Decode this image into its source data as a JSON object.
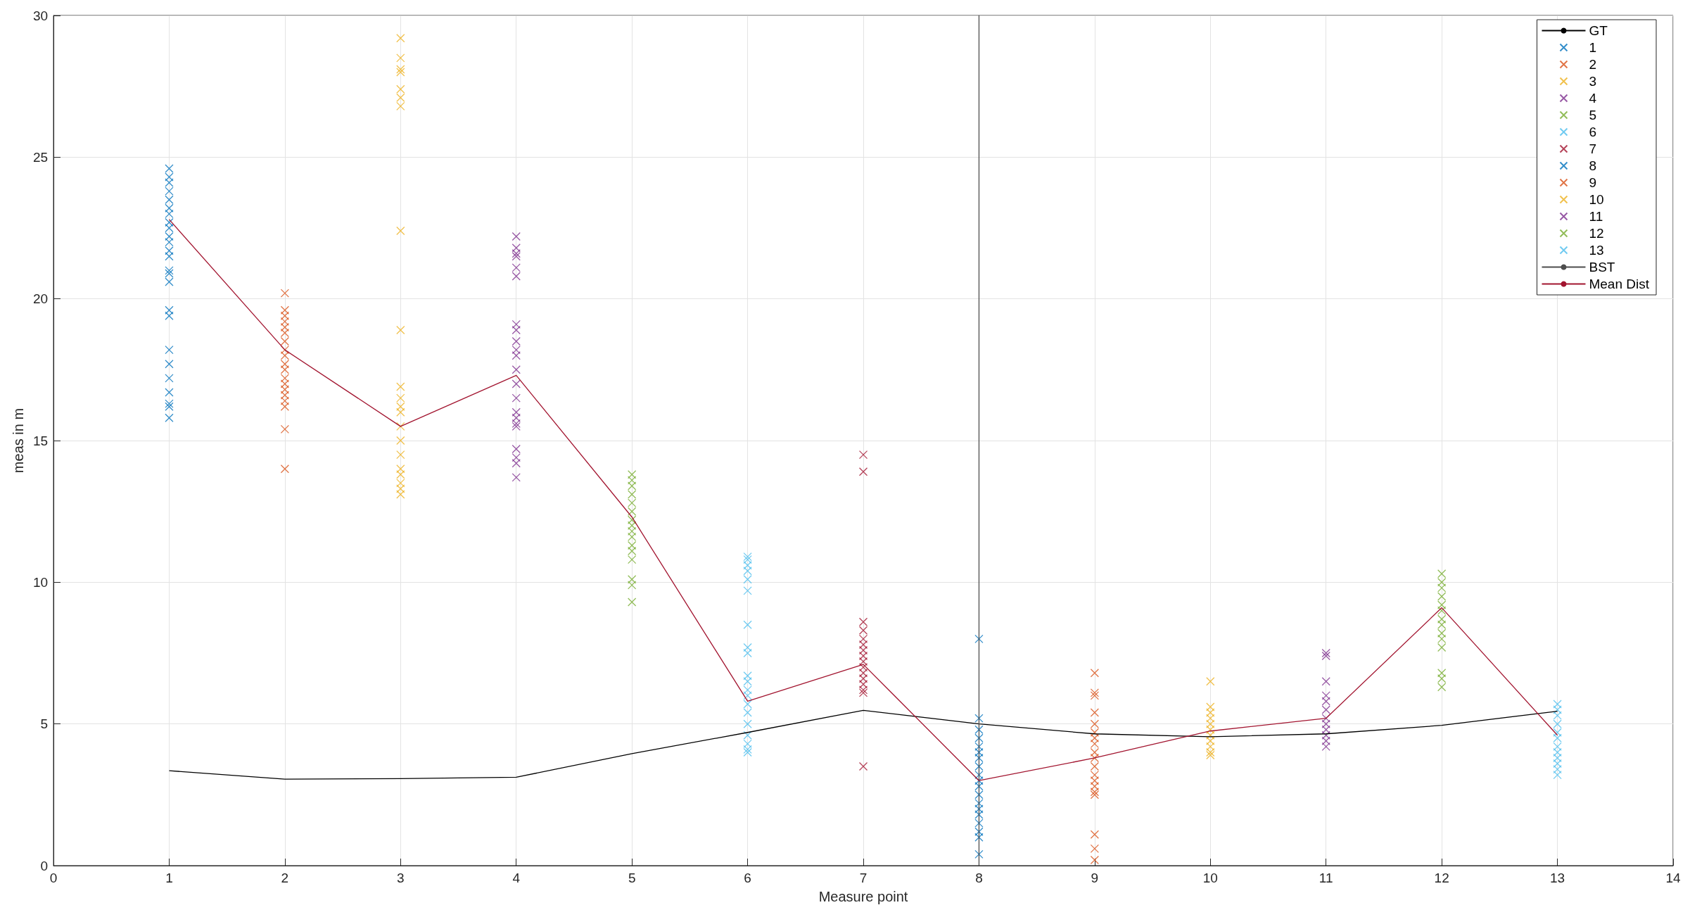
{
  "chart_data": {
    "type": "scatter",
    "xlabel": "Measure point",
    "ylabel": "meas in m",
    "xlim": [
      0,
      14
    ],
    "xticks": [
      0,
      1,
      2,
      3,
      4,
      5,
      6,
      7,
      8,
      9,
      10,
      11,
      12,
      13,
      14
    ],
    "ylim": [
      0,
      30
    ],
    "yticks": [
      0,
      5,
      10,
      15,
      20,
      25,
      30
    ],
    "grid": true,
    "legend": "top right",
    "marker": "cross",
    "series": [
      {
        "name": "GT",
        "type": "line",
        "marker": "none",
        "color": "#000000",
        "x": [
          1,
          2,
          3,
          4,
          5,
          6,
          7,
          8,
          9,
          10,
          11,
          12,
          13
        ],
        "values": [
          3.35,
          3.05,
          3.07,
          3.12,
          3.95,
          4.7,
          5.48,
          5.0,
          4.65,
          4.55,
          4.65,
          4.95,
          5.45
        ]
      },
      {
        "name": "1",
        "color": "#0072bd",
        "x": [
          1,
          1,
          1,
          1,
          1,
          1,
          1,
          1,
          1,
          1,
          1,
          1,
          1,
          1,
          1,
          1,
          1,
          1,
          1,
          1,
          1,
          1,
          1,
          1,
          1
        ],
        "values": [
          24.6,
          24.3,
          24.1,
          23.8,
          23.5,
          23.2,
          23,
          22.7,
          22.5,
          22.2,
          22,
          21.7,
          21.5,
          21,
          20.9,
          20.6,
          19.6,
          19.4,
          18.2,
          17.7,
          17.2,
          16.7,
          16.3,
          16.2,
          15.8
        ]
      },
      {
        "name": "2",
        "color": "#d95319",
        "x": [
          2,
          2,
          2,
          2,
          2,
          2,
          2,
          2,
          2,
          2,
          2,
          2,
          2,
          2,
          2,
          2,
          2,
          2,
          2
        ],
        "values": [
          20.2,
          19.6,
          19.4,
          19.2,
          19,
          18.8,
          18.5,
          18.2,
          18,
          17.7,
          17.5,
          17.2,
          17,
          16.8,
          16.6,
          16.4,
          16.2,
          14.0,
          15.4
        ]
      },
      {
        "name": "3",
        "color": "#edb120",
        "x": [
          3,
          3,
          3,
          3,
          3,
          3,
          3,
          3,
          3,
          3,
          3,
          3,
          3,
          3,
          3,
          3,
          3,
          3,
          3,
          3,
          3
        ],
        "values": [
          29.2,
          28.5,
          28.1,
          28.0,
          27.4,
          27.1,
          26.8,
          22.4,
          18.9,
          16.9,
          16.5,
          16.2,
          16,
          15.5,
          15,
          14.5,
          14,
          13.8,
          13.5,
          13.3,
          13.1
        ]
      },
      {
        "name": "4",
        "color": "#7e2f8e",
        "x": [
          4,
          4,
          4,
          4,
          4,
          4,
          4,
          4,
          4,
          4,
          4,
          4,
          4,
          4,
          4,
          4,
          4,
          4,
          4,
          4,
          4,
          4
        ],
        "values": [
          22.2,
          21.8,
          21.6,
          21.5,
          21.1,
          20.8,
          19.1,
          18.9,
          18.5,
          18.2,
          18,
          17.5,
          17,
          16.5,
          16,
          15.8,
          15.6,
          15.5,
          14.7,
          14.4,
          14.2,
          13.7
        ]
      },
      {
        "name": "5",
        "color": "#77ac30",
        "x": [
          5,
          5,
          5,
          5,
          5,
          5,
          5,
          5,
          5,
          5,
          5,
          5,
          5,
          5,
          5,
          5
        ],
        "values": [
          13.8,
          13.6,
          13.4,
          13.1,
          12.8,
          12.5,
          12.2,
          12,
          11.8,
          11.6,
          11.3,
          11.1,
          10.8,
          10.1,
          9.9,
          9.3
        ]
      },
      {
        "name": "6",
        "color": "#4dbeee",
        "x": [
          6,
          6,
          6,
          6,
          6,
          6,
          6,
          6,
          6,
          6,
          6,
          6,
          6,
          6,
          6,
          6,
          6,
          6,
          6,
          6
        ],
        "values": [
          10.9,
          10.8,
          10.6,
          10.4,
          10.1,
          9.7,
          8.5,
          7.7,
          7.5,
          6.7,
          6.5,
          6.2,
          6,
          5.7,
          5.4,
          5,
          4.6,
          4.3,
          4.1,
          4.0
        ]
      },
      {
        "name": "7",
        "color": "#a2142f",
        "x": [
          7,
          7,
          7,
          7,
          7,
          7,
          7,
          7,
          7,
          7,
          7,
          7,
          7,
          7,
          7,
          7
        ],
        "values": [
          14.5,
          13.9,
          8.6,
          8.3,
          8.0,
          7.8,
          7.6,
          7.4,
          7.2,
          7.0,
          6.8,
          6.6,
          6.4,
          6.2,
          6.1,
          3.5
        ]
      },
      {
        "name": "8",
        "color": "#0072bd",
        "x": [
          8,
          8,
          8,
          8,
          8,
          8,
          8,
          8,
          8,
          8,
          8,
          8,
          8,
          8,
          8,
          8,
          8,
          8,
          8
        ],
        "values": [
          8.0,
          5.2,
          4.8,
          4.5,
          4.2,
          4.0,
          3.8,
          3.5,
          3.2,
          3.0,
          2.8,
          2.5,
          2.2,
          2.0,
          1.8,
          1.5,
          1.2,
          1.0,
          0.4
        ]
      },
      {
        "name": "9",
        "color": "#d95319",
        "x": [
          9,
          9,
          9,
          9,
          9,
          9,
          9,
          9,
          9,
          9,
          9,
          9,
          9,
          9,
          9,
          9,
          9,
          9,
          9
        ],
        "values": [
          6.8,
          6.1,
          6.0,
          5.4,
          5.0,
          4.7,
          4.5,
          4.3,
          4.0,
          3.8,
          3.5,
          3.2,
          3.0,
          2.8,
          2.6,
          2.5,
          1.1,
          0.6,
          0.2
        ]
      },
      {
        "name": "10",
        "color": "#edb120",
        "x": [
          10,
          10,
          10,
          10,
          10,
          10,
          10,
          10,
          10,
          10,
          10
        ],
        "values": [
          6.5,
          5.6,
          5.4,
          5.2,
          5.0,
          4.8,
          4.6,
          4.4,
          4.2,
          4.0,
          3.9
        ]
      },
      {
        "name": "11",
        "color": "#7e2f8e",
        "x": [
          11,
          11,
          11,
          11,
          11,
          11,
          11,
          11,
          11,
          11,
          11,
          11
        ],
        "values": [
          7.5,
          7.4,
          6.5,
          6.0,
          5.8,
          5.5,
          5.2,
          5.0,
          4.8,
          4.6,
          4.4,
          4.2
        ]
      },
      {
        "name": "12",
        "color": "#77ac30",
        "x": [
          12,
          12,
          12,
          12,
          12,
          12,
          12,
          12,
          12,
          12,
          12,
          12,
          12,
          12
        ],
        "values": [
          10.3,
          10.0,
          9.8,
          9.5,
          9.2,
          9.0,
          8.7,
          8.5,
          8.2,
          8.0,
          7.7,
          6.8,
          6.6,
          6.3
        ]
      },
      {
        "name": "13",
        "color": "#4dbeee",
        "x": [
          13,
          13,
          13,
          13,
          13,
          13,
          13,
          13,
          13,
          13,
          13,
          13
        ],
        "values": [
          5.7,
          5.5,
          5.3,
          5.0,
          4.7,
          4.5,
          4.2,
          4.0,
          3.8,
          3.6,
          3.4,
          3.2
        ]
      },
      {
        "name": "BST",
        "type": "line",
        "marker": "none",
        "color": "#4d4d4d",
        "x": [
          8,
          8
        ],
        "values": [
          0,
          30
        ]
      },
      {
        "name": "Mean Dist",
        "type": "line",
        "marker": "none",
        "color": "#a2142f",
        "x": [
          1,
          2,
          3,
          4,
          5,
          6,
          7,
          8,
          9,
          10,
          11,
          12,
          13
        ],
        "values": [
          22.8,
          18.2,
          15.5,
          17.3,
          12.3,
          5.8,
          7.1,
          3.0,
          3.8,
          4.75,
          5.2,
          9.1,
          4.6
        ]
      }
    ]
  }
}
